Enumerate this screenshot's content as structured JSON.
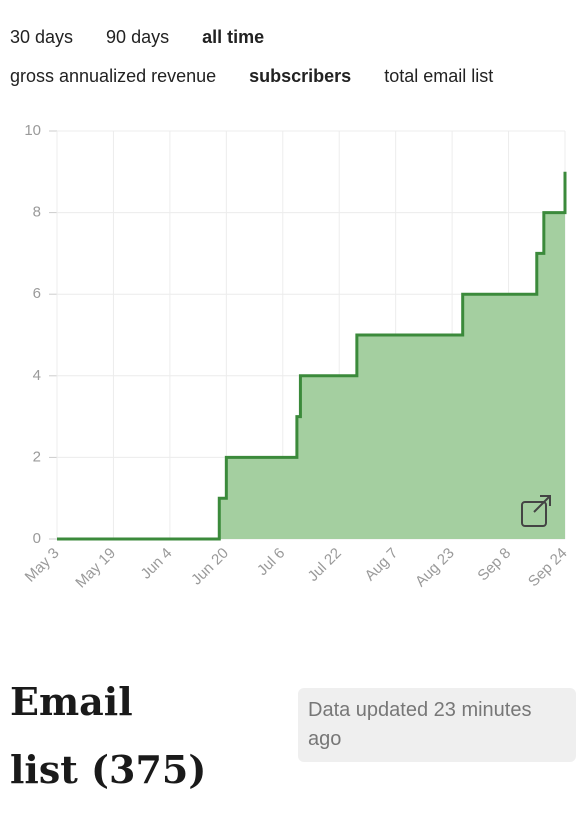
{
  "range_tabs": {
    "items": [
      "30 days",
      "90 days",
      "all time"
    ],
    "selected": 2
  },
  "metric_tabs": {
    "items": [
      "gross annualized revenue",
      "subscribers",
      "total email list"
    ],
    "selected": 1
  },
  "chart_data": {
    "type": "step-area",
    "x": [
      "May 3",
      "Jun 18",
      "Jun 20",
      "Jul 10",
      "Jul 11",
      "Jul 27",
      "Aug 26",
      "Sep 16",
      "Sep 18",
      "Sep 24"
    ],
    "series": [
      {
        "name": "subscribers",
        "color": "#3b8a3b",
        "fill": "#a4cfa0",
        "values": [
          0,
          1,
          2,
          3,
          4,
          5,
          6,
          7,
          8,
          9
        ]
      }
    ],
    "xlim": [
      "May 3",
      "Sep 24"
    ],
    "xticks": [
      "May 3",
      "May 19",
      "Jun 4",
      "Jun 20",
      "Jul 6",
      "Jul 22",
      "Aug 7",
      "Aug 23",
      "Sep 8",
      "Sep 24"
    ],
    "ylim": [
      0,
      10
    ],
    "yticks": [
      0,
      2,
      4,
      6,
      8,
      10
    ],
    "grid": true
  },
  "heading": "Email list (375)",
  "status": "Data updated 23 minutes ago"
}
